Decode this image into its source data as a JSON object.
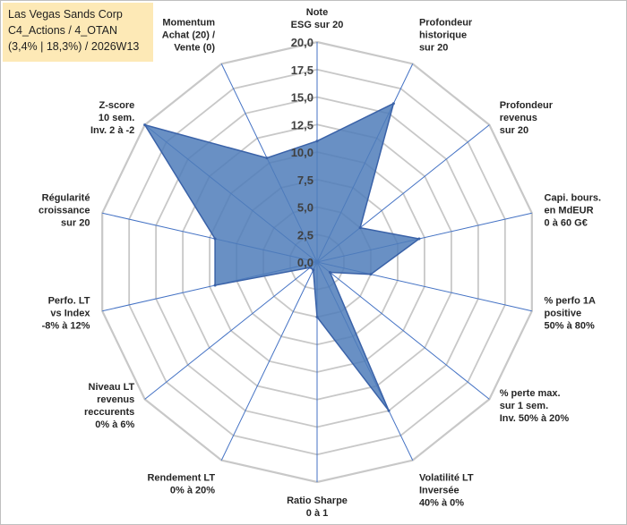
{
  "title_box": {
    "line1": "Las Vegas Sands Corp",
    "line2": "C4_Actions / 4_OTAN",
    "line3": "(3,4% | 18,3%) / 2026W13",
    "bg_color": "#fde9b6"
  },
  "chart_data": {
    "type": "radar",
    "r_min": 0,
    "r_max": 20,
    "r_ticks": [
      "0,0",
      "2,5",
      "5,0",
      "7,5",
      "10,0",
      "12,5",
      "15,0",
      "17,5",
      "20,0"
    ],
    "fill_color": "#4f7cba",
    "line_color": "#3a62a8",
    "axis_color": "#4472c4",
    "grid_color": "#c8c8c8",
    "axes": [
      {
        "label": [
          "Note",
          "ESG sur 20"
        ],
        "value": 11
      },
      {
        "label": [
          "Profondeur",
          "historique",
          "sur 20"
        ],
        "value": 16
      },
      {
        "label": [
          "Profondeur",
          "revenus",
          "sur 20"
        ],
        "value": 5
      },
      {
        "label": [
          "Capi. bours.",
          "en MdEUR",
          "0 à 60 G€"
        ],
        "value": 9.5
      },
      {
        "label": [
          "% perfo 1A",
          "positive",
          "50% à 80%"
        ],
        "value": 5
      },
      {
        "label": [
          "% perte max.",
          "sur 1 sem.",
          "Inv. 50% à 20%"
        ],
        "value": 1.5
      },
      {
        "label": [
          "Volatilité LT",
          "Inversée",
          "40% à 0%"
        ],
        "value": 15
      },
      {
        "label": [
          "Ratio Sharpe",
          "0 à 1"
        ],
        "value": 5
      },
      {
        "label": [
          "Rendement LT",
          "0% à 20%"
        ],
        "value": 0.8
      },
      {
        "label": [
          "Niveau LT",
          "revenus",
          "reccurents",
          "0% à 6%"
        ],
        "value": 0.8
      },
      {
        "label": [
          "Perfo. LT",
          "vs Index",
          "-8% à 12%"
        ],
        "value": 9.5
      },
      {
        "label": [
          "Régularité",
          "croissance",
          "sur 20"
        ],
        "value": 9.5
      },
      {
        "label": [
          "Z-score",
          "10 sem.",
          "Inv. 2 à -2"
        ],
        "value": 20
      },
      {
        "label": [
          "Momentum",
          "Achat (20) /",
          "Vente (0)"
        ],
        "value": 10.5
      }
    ]
  }
}
